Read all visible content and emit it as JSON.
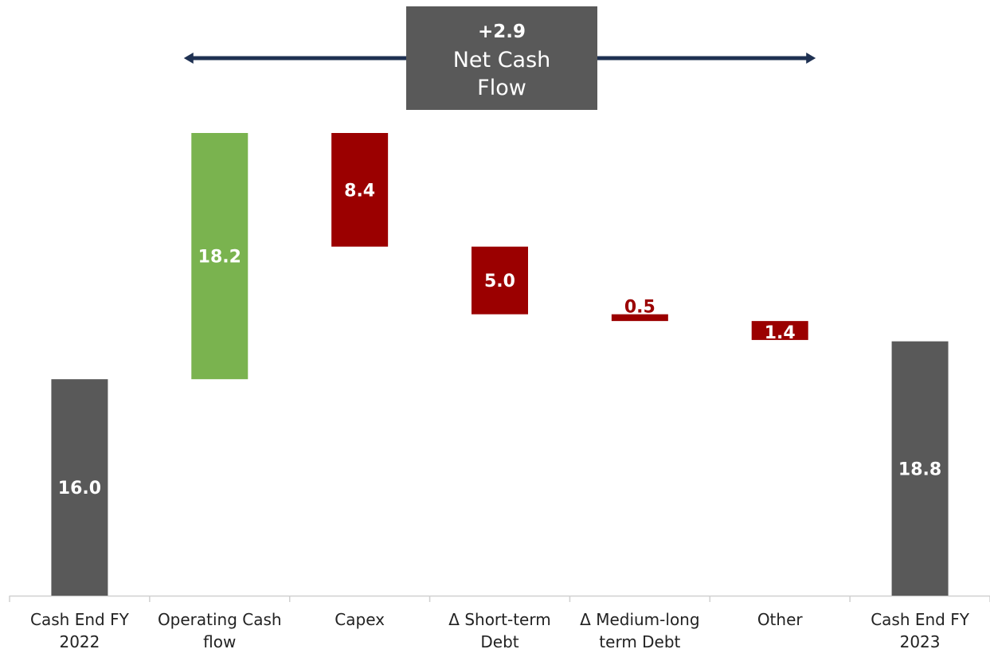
{
  "chart_data": {
    "type": "bar",
    "subtype": "waterfall",
    "categories": [
      [
        "Cash End FY",
        "2022"
      ],
      [
        "Operating Cash",
        "flow"
      ],
      [
        "Capex"
      ],
      [
        "Δ Short-term",
        "Debt"
      ],
      [
        "Δ Medium-long",
        "term Debt"
      ],
      [
        "Other"
      ],
      [
        "Cash End FY",
        "2023"
      ]
    ],
    "values": [
      16.0,
      18.2,
      -8.4,
      -5.0,
      -0.5,
      -1.4,
      18.8
    ],
    "value_labels": [
      "16.0",
      "18.2",
      "8.4",
      "5.0",
      "0.5",
      "1.4",
      "18.8"
    ],
    "kinds": [
      "total",
      "increase",
      "decrease",
      "decrease",
      "decrease",
      "decrease",
      "total"
    ],
    "ylim": [
      0,
      34.2
    ],
    "grid": false,
    "annotation": {
      "value": "+2.9",
      "lines": [
        "Net Cash",
        "Flow"
      ],
      "spans_from_category": 1,
      "spans_to_category": 5
    }
  },
  "colors": {
    "total": "#595959",
    "increase": "#7ab34f",
    "decrease": "#9b0000",
    "arrow": "#1f3152",
    "axis": "#d0d0d0",
    "annotation_box": "#595959"
  }
}
